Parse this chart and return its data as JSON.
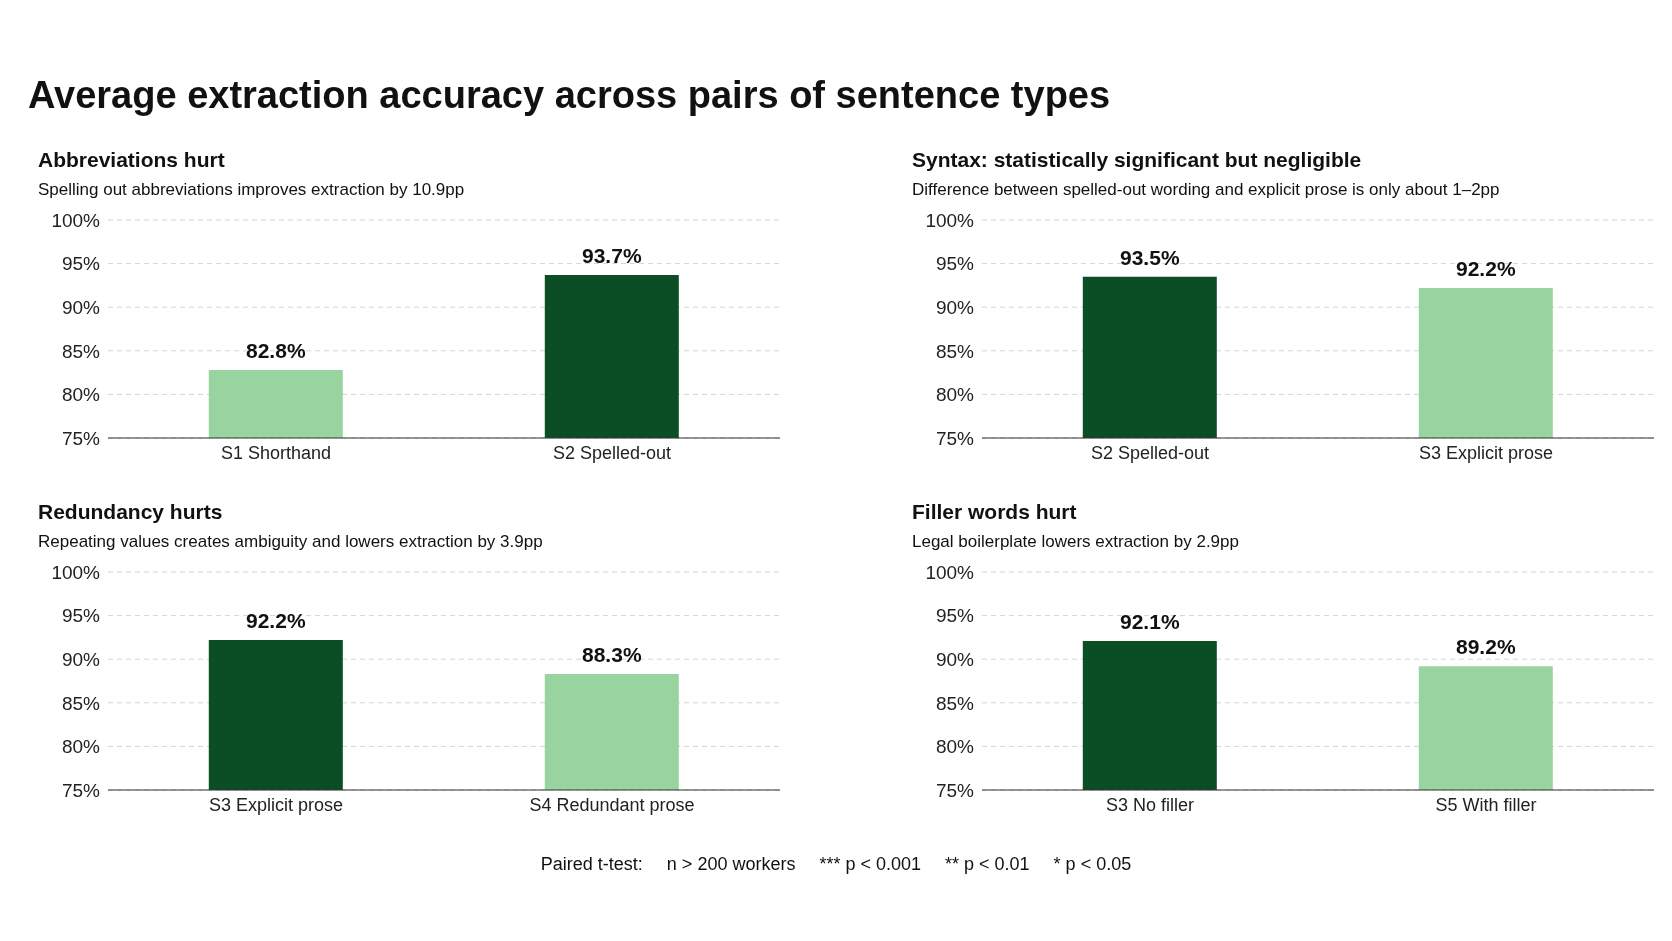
{
  "chart_data": [
    {
      "type": "bar",
      "title": "Abbreviations hurt",
      "subtitle": "Spelling out abbreviations improves extraction by 10.9pp",
      "annotations": [
        "Average extraction accuracy across pairs of sentence types"
      ],
      "categories": [
        "S1 Shorthand",
        "S2 Spelled-out"
      ],
      "values": [
        82.8,
        93.7
      ],
      "colors": [
        "#98d4a0",
        "#0b4d24"
      ],
      "value_labels": [
        "82.8%",
        "93.7%"
      ],
      "ylim": [
        75,
        100
      ],
      "yticks": [
        {
          "value": 75,
          "label": "75%"
        },
        {
          "value": 80,
          "label": "80%"
        },
        {
          "value": 85,
          "label": "85%"
        },
        {
          "value": 90,
          "label": "90%"
        },
        {
          "value": 95,
          "label": "95%"
        },
        {
          "value": 100,
          "label": "100%"
        }
      ],
      "grid": "y",
      "legend": false
    },
    {
      "type": "bar",
      "title": "Syntax: statistically significant but negligible",
      "subtitle": "Difference between spelled-out wording and explicit prose is only about 1–2pp",
      "categories": [
        "S2 Spelled-out",
        "S3 Explicit prose"
      ],
      "values": [
        93.5,
        92.2
      ],
      "colors": [
        "#0b4d24",
        "#98d4a0"
      ],
      "value_labels": [
        "93.5%",
        "92.2%"
      ],
      "ylim": [
        75,
        100
      ],
      "yticks": [
        {
          "value": 75,
          "label": "75%"
        },
        {
          "value": 80,
          "label": "80%"
        },
        {
          "value": 85,
          "label": "85%"
        },
        {
          "value": 90,
          "label": "90%"
        },
        {
          "value": 95,
          "label": "95%"
        },
        {
          "value": 100,
          "label": "100%"
        }
      ],
      "grid": "y",
      "legend": false
    },
    {
      "type": "bar",
      "title": "Redundancy hurts",
      "subtitle": "Repeating values creates ambiguity and lowers extraction by 3.9pp",
      "categories": [
        "S3 Explicit prose",
        "S4 Redundant prose"
      ],
      "values": [
        92.2,
        88.3
      ],
      "colors": [
        "#0b4d24",
        "#98d4a0"
      ],
      "value_labels": [
        "92.2%",
        "88.3%"
      ],
      "ylim": [
        75,
        100
      ],
      "yticks": [
        {
          "value": 75,
          "label": "75%"
        },
        {
          "value": 80,
          "label": "80%"
        },
        {
          "value": 85,
          "label": "85%"
        },
        {
          "value": 90,
          "label": "90%"
        },
        {
          "value": 95,
          "label": "95%"
        },
        {
          "value": 100,
          "label": "100%"
        }
      ],
      "grid": "y",
      "legend": false
    },
    {
      "type": "bar",
      "title": "Filler words hurt",
      "subtitle": "Legal boilerplate lowers extraction by 2.9pp",
      "annotations": [
        "Paired t-test:",
        "n > 200 workers",
        "*** p < 0.001",
        "** p < 0.01",
        "* p < 0.05"
      ],
      "categories": [
        "S3 No filler",
        "S5 With filler"
      ],
      "values": [
        92.1,
        89.2
      ],
      "colors": [
        "#0b4d24",
        "#98d4a0"
      ],
      "value_labels": [
        "92.1%",
        "89.2%"
      ],
      "ylim": [
        75,
        100
      ],
      "yticks": [
        {
          "value": 75,
          "label": "75%"
        },
        {
          "value": 80,
          "label": "80%"
        },
        {
          "value": 85,
          "label": "85%"
        },
        {
          "value": 90,
          "label": "90%"
        },
        {
          "value": 95,
          "label": "95%"
        },
        {
          "value": 100,
          "label": "100%"
        }
      ],
      "grid": "y",
      "legend": false
    }
  ]
}
